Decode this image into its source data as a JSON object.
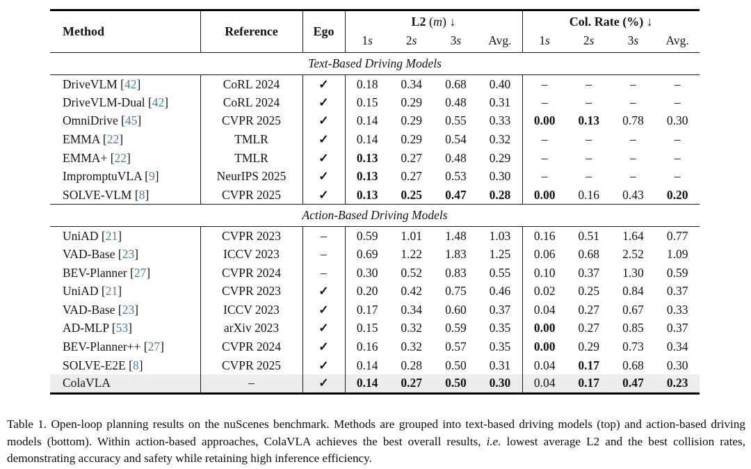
{
  "colors": {
    "citation": "#4e7fa5",
    "highlight_row": "#ececec",
    "rule": "#1a1a1a"
  },
  "table": {
    "header": {
      "method": "Method",
      "reference": "Reference",
      "ego": "Ego",
      "l2_label": "L2",
      "l2_unit": "m",
      "l2_arrow": "↓",
      "colrate_label": "Col. Rate (%)",
      "colrate_arrow": "↓",
      "sub_labels": [
        "1s",
        "2s",
        "3s",
        "Avg."
      ]
    },
    "sections": [
      {
        "title": "Text-Based Driving Models",
        "rows": [
          {
            "method": "DriveVLM",
            "cite": "42",
            "reference": "CoRL 2024",
            "ego": "✓",
            "l2": [
              "0.18",
              "0.34",
              "0.68",
              "0.40"
            ],
            "l2_bold": [],
            "cr": [
              "–",
              "–",
              "–",
              "–"
            ],
            "cr_bold": [],
            "highlight": false
          },
          {
            "method": "DriveVLM-Dual",
            "cite": "42",
            "reference": "CoRL 2024",
            "ego": "✓",
            "l2": [
              "0.15",
              "0.29",
              "0.48",
              "0.31"
            ],
            "l2_bold": [],
            "cr": [
              "–",
              "–",
              "–",
              "–"
            ],
            "cr_bold": [],
            "highlight": false
          },
          {
            "method": "OmniDrive",
            "cite": "45",
            "reference": "CVPR 2025",
            "ego": "✓",
            "l2": [
              "0.14",
              "0.29",
              "0.55",
              "0.33"
            ],
            "l2_bold": [],
            "cr": [
              "0.00",
              "0.13",
              "0.78",
              "0.30"
            ],
            "cr_bold": [
              0,
              1
            ],
            "highlight": false
          },
          {
            "method": "EMMA",
            "cite": "22",
            "reference": "TMLR",
            "ego": "✓",
            "l2": [
              "0.14",
              "0.29",
              "0.54",
              "0.32"
            ],
            "l2_bold": [],
            "cr": [
              "–",
              "–",
              "–",
              "–"
            ],
            "cr_bold": [],
            "highlight": false
          },
          {
            "method": "EMMA+",
            "cite": "22",
            "reference": "TMLR",
            "ego": "✓",
            "l2": [
              "0.13",
              "0.27",
              "0.48",
              "0.29"
            ],
            "l2_bold": [
              0
            ],
            "cr": [
              "–",
              "–",
              "–",
              "–"
            ],
            "cr_bold": [],
            "highlight": false
          },
          {
            "method": "ImpromptuVLA",
            "cite": "9",
            "reference": "NeurIPS 2025",
            "ego": "✓",
            "l2": [
              "0.13",
              "0.27",
              "0.53",
              "0.30"
            ],
            "l2_bold": [
              0
            ],
            "cr": [
              "–",
              "–",
              "–",
              "–"
            ],
            "cr_bold": [],
            "highlight": false
          },
          {
            "method": "SOLVE-VLM",
            "cite": "8",
            "reference": "CVPR 2025",
            "ego": "✓",
            "l2": [
              "0.13",
              "0.25",
              "0.47",
              "0.28"
            ],
            "l2_bold": [
              0,
              1,
              2,
              3
            ],
            "cr": [
              "0.00",
              "0.16",
              "0.43",
              "0.20"
            ],
            "cr_bold": [
              0,
              3
            ],
            "highlight": false
          }
        ]
      },
      {
        "title": "Action-Based Driving Models",
        "rows": [
          {
            "method": "UniAD",
            "cite": "21",
            "reference": "CVPR 2023",
            "ego": "–",
            "l2": [
              "0.59",
              "1.01",
              "1.48",
              "1.03"
            ],
            "l2_bold": [],
            "cr": [
              "0.16",
              "0.51",
              "1.64",
              "0.77"
            ],
            "cr_bold": [],
            "highlight": false
          },
          {
            "method": "VAD-Base",
            "cite": "23",
            "reference": "ICCV 2023",
            "ego": "–",
            "l2": [
              "0.69",
              "1.22",
              "1.83",
              "1.25"
            ],
            "l2_bold": [],
            "cr": [
              "0.06",
              "0.68",
              "2.52",
              "1.09"
            ],
            "cr_bold": [],
            "highlight": false
          },
          {
            "method": "BEV-Planner",
            "cite": "27",
            "reference": "CVPR 2024",
            "ego": "–",
            "l2": [
              "0.30",
              "0.52",
              "0.83",
              "0.55"
            ],
            "l2_bold": [],
            "cr": [
              "0.10",
              "0.37",
              "1.30",
              "0.59"
            ],
            "cr_bold": [],
            "highlight": false
          },
          {
            "method": "UniAD",
            "cite": "21",
            "reference": "CVPR 2023",
            "ego": "✓",
            "l2": [
              "0.20",
              "0.42",
              "0.75",
              "0.46"
            ],
            "l2_bold": [],
            "cr": [
              "0.02",
              "0.25",
              "0.84",
              "0.37"
            ],
            "cr_bold": [],
            "highlight": false
          },
          {
            "method": "VAD-Base",
            "cite": "23",
            "reference": "ICCV 2023",
            "ego": "✓",
            "l2": [
              "0.17",
              "0.34",
              "0.60",
              "0.37"
            ],
            "l2_bold": [],
            "cr": [
              "0.04",
              "0.27",
              "0.67",
              "0.33"
            ],
            "cr_bold": [],
            "highlight": false
          },
          {
            "method": "AD-MLP",
            "cite": "53",
            "reference": "arXiv 2023",
            "ego": "✓",
            "l2": [
              "0.15",
              "0.32",
              "0.59",
              "0.35"
            ],
            "l2_bold": [],
            "cr": [
              "0.00",
              "0.27",
              "0.85",
              "0.37"
            ],
            "cr_bold": [
              0
            ],
            "highlight": false
          },
          {
            "method": "BEV-Planner++",
            "cite": "27",
            "reference": "CVPR 2024",
            "ego": "✓",
            "l2": [
              "0.16",
              "0.32",
              "0.57",
              "0.35"
            ],
            "l2_bold": [],
            "cr": [
              "0.00",
              "0.29",
              "0.73",
              "0.34"
            ],
            "cr_bold": [
              0
            ],
            "highlight": false
          },
          {
            "method": "SOLVE-E2E",
            "cite": "8",
            "reference": "CVPR 2025",
            "ego": "✓",
            "l2": [
              "0.14",
              "0.28",
              "0.50",
              "0.31"
            ],
            "l2_bold": [],
            "cr": [
              "0.04",
              "0.17",
              "0.68",
              "0.30"
            ],
            "cr_bold": [
              1
            ],
            "highlight": false
          },
          {
            "method": "ColaVLA",
            "cite": "",
            "reference": "–",
            "ego": "✓",
            "l2": [
              "0.14",
              "0.27",
              "0.50",
              "0.30"
            ],
            "l2_bold": [
              0,
              1,
              2,
              3
            ],
            "cr": [
              "0.04",
              "0.17",
              "0.47",
              "0.23"
            ],
            "cr_bold": [
              1,
              2,
              3
            ],
            "highlight": true
          }
        ]
      }
    ]
  },
  "caption": {
    "parts": [
      {
        "text": "Table 1. Open-loop planning results on the nuScenes benchmark. Methods are grouped into text-based driving models (top) and action-based driving models (bottom). Within action-based approaches, ColaVLA achieves the best overall results, ",
        "italic": false
      },
      {
        "text": "i.e.",
        "italic": true
      },
      {
        "text": " lowest average L2 and the best collision rates, demonstrating accuracy and safety while retaining high inference efficiency.",
        "italic": false
      }
    ]
  }
}
